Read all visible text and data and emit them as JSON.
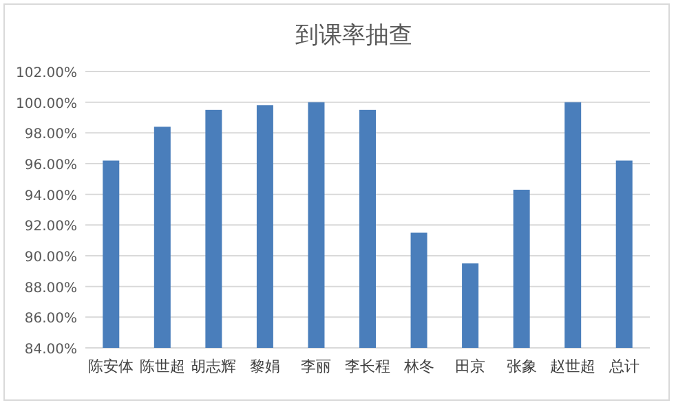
{
  "chart_data": {
    "type": "bar",
    "title": "到课率抽查",
    "categories": [
      "陈安体",
      "陈世超",
      "胡志辉",
      "黎娟",
      "李丽",
      "李长程",
      "林冬",
      "田京",
      "张象",
      "赵世超",
      "总计"
    ],
    "values": [
      96.2,
      98.4,
      99.5,
      99.8,
      100,
      99.5,
      91.5,
      89.5,
      94.3,
      100,
      96.2
    ],
    "color": "#4a7ebb",
    "ylim": [
      84,
      102
    ],
    "yticks": [
      {
        "value": 84,
        "label": "84.00%"
      },
      {
        "value": 86,
        "label": "86.00%"
      },
      {
        "value": 88,
        "label": "88.00%"
      },
      {
        "value": 90,
        "label": "90.00%"
      },
      {
        "value": 92,
        "label": "92.00%"
      },
      {
        "value": 94,
        "label": "94.00%"
      },
      {
        "value": 96,
        "label": "96.00%"
      },
      {
        "value": 98,
        "label": "98.00%"
      },
      {
        "value": 100,
        "label": "100.00%"
      },
      {
        "value": 102,
        "label": "102.00%"
      }
    ],
    "grid": "y"
  }
}
